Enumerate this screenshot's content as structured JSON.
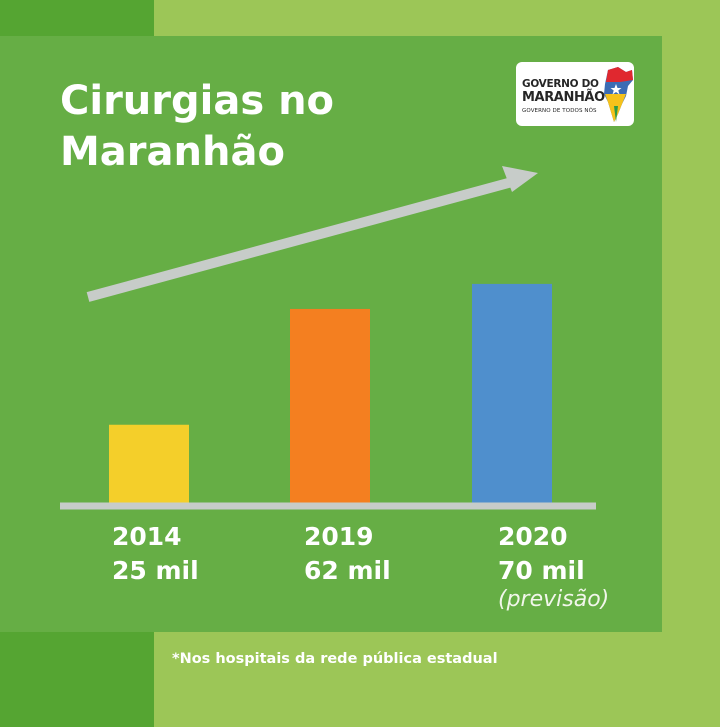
{
  "title_line1": "Cirurgias no",
  "title_line2": "Maranhão",
  "logo": {
    "line1": "GOVERNO DO",
    "line2": "MARANHÃO",
    "line3": "GOVERNO DE TODOS NÓS"
  },
  "footnote": "*Nos hospitais da rede pública estadual",
  "colors": {
    "background": "#9cc657",
    "panel": "#66ae45",
    "corner_bands": "#55a532",
    "axis": "#c7ccc9",
    "trend_arrow": "#c7ccc9"
  },
  "chart_data": {
    "type": "bar",
    "title": "Cirurgias no Maranhão",
    "categories": [
      "2014",
      "2019",
      "2020"
    ],
    "values": [
      25,
      62,
      70
    ],
    "value_labels": [
      "25 mil",
      "62 mil",
      "70 mil"
    ],
    "annotations": [
      "",
      "",
      "(previsão)"
    ],
    "colors": [
      "#f4cf2a",
      "#f47f20",
      "#4f8fcd"
    ],
    "unit": "mil",
    "ylim": [
      0,
      80
    ],
    "grid": false,
    "trend_arrow": "rising"
  }
}
